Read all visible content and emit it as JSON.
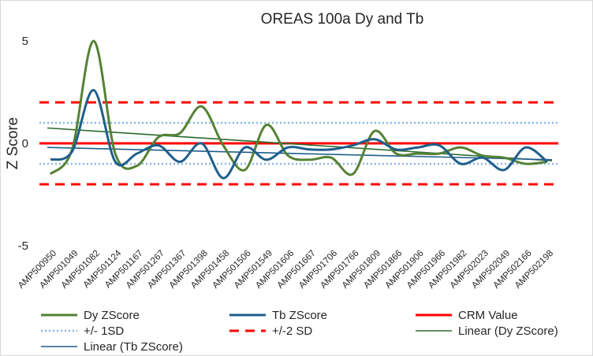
{
  "chart_data": {
    "type": "line",
    "title": "OREAS 100a Dy and Tb",
    "ylabel": "Z Score",
    "xlabel": "",
    "ylim": [
      -5,
      5
    ],
    "yticks": [
      5,
      0,
      -5
    ],
    "tick_labels": [
      "5",
      "0",
      "-5"
    ],
    "categories": [
      "AMP500950",
      "AMP501049",
      "AMP501082",
      "AMP501124",
      "AMP501167",
      "AMP501267",
      "AMP501367",
      "AMP501398",
      "AMP501458",
      "AMP501506",
      "AMP501549",
      "AMP501606",
      "AMP501667",
      "AMP501706",
      "AMP501766",
      "AMP501809",
      "AMP501866",
      "AMP501906",
      "AMP501966",
      "AMP501982",
      "AMP502023",
      "AMP502049",
      "AMP502166",
      "AMP502198"
    ],
    "series": [
      {
        "name": "Dy ZScore",
        "color": "#548235",
        "values": [
          -1.5,
          -0.3,
          5.0,
          -0.5,
          -1.1,
          0.3,
          0.5,
          1.8,
          -0.1,
          -1.3,
          0.9,
          -0.6,
          -0.8,
          -0.7,
          -1.5,
          0.6,
          -0.5,
          -0.5,
          -0.5,
          -0.2,
          -0.6,
          -0.7,
          -1.0,
          -0.9
        ]
      },
      {
        "name": "Tb ZScore",
        "color": "#1f5f8b",
        "values": [
          -0.8,
          -0.4,
          2.6,
          -0.9,
          -0.5,
          -0.1,
          -0.9,
          0.0,
          -1.7,
          -0.2,
          -0.8,
          -0.2,
          -0.3,
          -0.3,
          -0.1,
          0.2,
          -0.3,
          -0.2,
          -0.1,
          -1.0,
          -0.7,
          -1.3,
          -0.2,
          -0.9
        ]
      }
    ],
    "reference_lines": [
      {
        "name": "CRM Value",
        "color": "#ff0000",
        "style": "solid",
        "values": [
          0
        ]
      },
      {
        "name": "+/- 1SD",
        "color": "#8db4e2",
        "style": "dotted",
        "values": [
          1,
          -1
        ]
      },
      {
        "name": "+/-2 SD",
        "color": "#ff0000",
        "style": "dashed",
        "values": [
          2,
          -2
        ]
      }
    ],
    "trendlines": [
      {
        "name": "Linear (Dy ZScore)",
        "color": "#2d6a2d",
        "from": 0.75,
        "to": -0.85
      },
      {
        "name": "Linear (Tb ZScore)",
        "color": "#1f5f8b",
        "from": -0.2,
        "to": -0.8
      }
    ],
    "legend_position": "bottom",
    "legend": [
      "Dy ZScore",
      "Tb ZScore",
      "CRM Value",
      "+/- 1SD",
      "+/-2 SD",
      "Linear (Dy ZScore)",
      "Linear (Tb ZScore)"
    ]
  }
}
